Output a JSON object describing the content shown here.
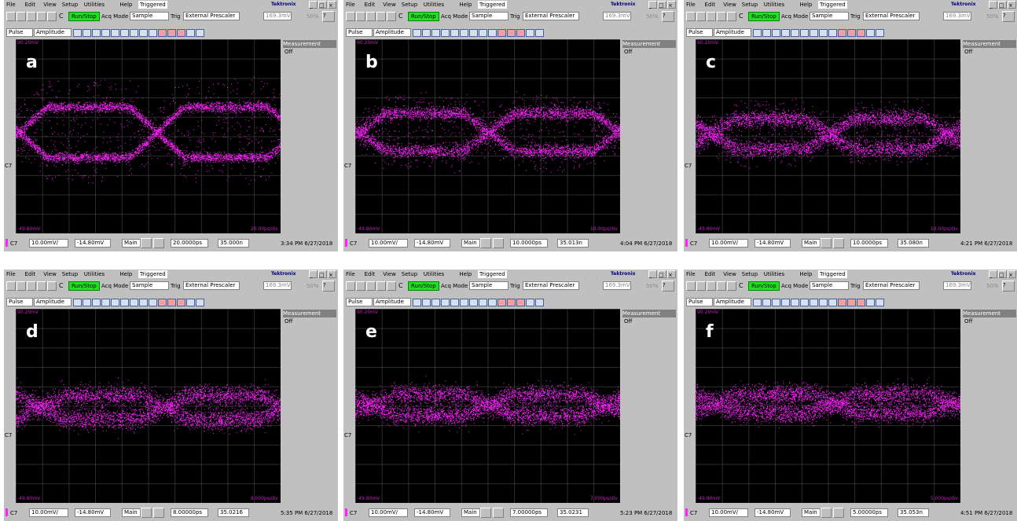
{
  "menu": [
    "File",
    "Edit",
    "View",
    "Setup",
    "Utilities",
    "Help"
  ],
  "trigger_state": "Triggered",
  "brand": "Tektronix",
  "toolbar": {
    "c": "C",
    "run": "Run/Stop",
    "acq": "Acq Mode",
    "mode": "Sample",
    "trig": "Trig",
    "source": "External Prescaler",
    "level": "169.3mV",
    "percent": "50%"
  },
  "row2": {
    "pulse": "Pulse",
    "amplitude": "Amplitude"
  },
  "side": {
    "title": "Measurement",
    "state": "Off"
  },
  "channel_marker": "C7",
  "status": {
    "channel": "C7",
    "scale": "10.00mV/",
    "offset": "-14.80mV",
    "view": "Main"
  },
  "panels": [
    {
      "label": "a",
      "top_label": "90.20mV",
      "bottom_left": "-49.80mV",
      "bottom_right": "20.00ps/div",
      "timebase": "20.0000ps",
      "position": "35.000n",
      "timestamp": "3:34 PM 6/27/2018"
    },
    {
      "label": "b",
      "top_label": "90.20mV",
      "bottom_left": "-49.80mV",
      "bottom_right": "10.00ps/div",
      "timebase": "10.0000ps",
      "position": "35.013n",
      "timestamp": "4:04 PM 6/27/2018"
    },
    {
      "label": "c",
      "top_label": "90.20mV",
      "bottom_left": "-49.80mV",
      "bottom_right": "10.00ps/div",
      "timebase": "10.0000ps",
      "position": "35.080n",
      "timestamp": "4:21 PM 6/27/2018"
    },
    {
      "label": "d",
      "top_label": "90.20mV",
      "bottom_left": "-49.80mV",
      "bottom_right": "8.000ps/div",
      "timebase": "8.00000ps",
      "position": "35.0216",
      "timestamp": "5:35 PM 6/27/2018"
    },
    {
      "label": "e",
      "top_label": "90.20mV",
      "bottom_left": "-49.80mV",
      "bottom_right": "7.000ps/div",
      "timebase": "7.00000ps",
      "position": "35.0231",
      "timestamp": "5:23 PM 6/27/2018"
    },
    {
      "label": "f",
      "top_label": "90.20mV",
      "bottom_left": "-49.80mV",
      "bottom_right": "5.000ps/div",
      "timebase": "5.00000ps",
      "position": "35.053n",
      "timestamp": "4:51 PM 6/27/2018"
    }
  ]
}
